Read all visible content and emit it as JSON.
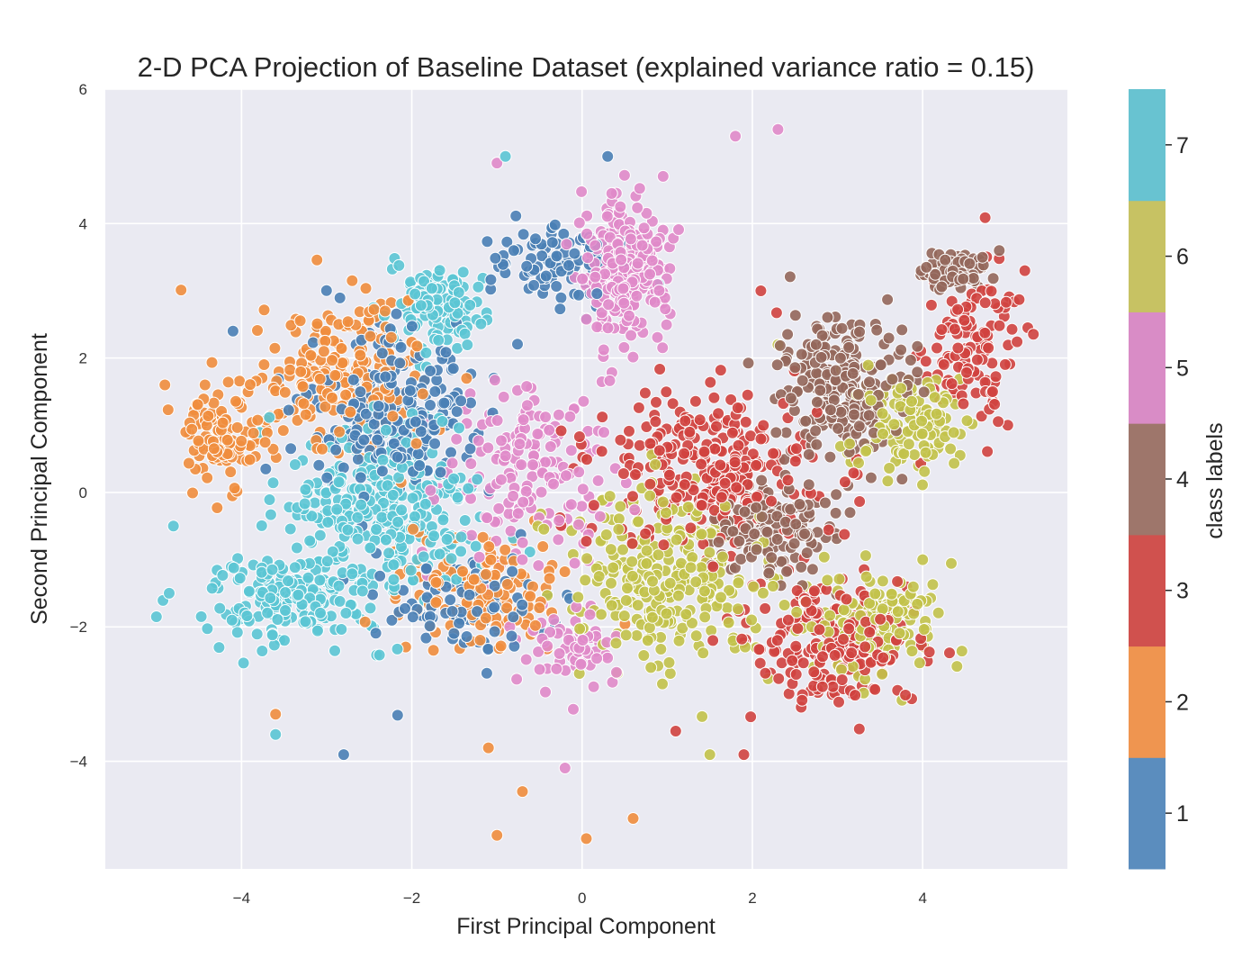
{
  "chart_data": {
    "type": "scatter",
    "title": "2-D PCA Projection of Baseline Dataset (explained variance ratio = 0.15)",
    "xlabel": "First Principal Component",
    "ylabel": "Second Principal Component",
    "xlim": [
      -5.6,
      5.7
    ],
    "ylim": [
      -5.6,
      6
    ],
    "xticks": [
      -4,
      -2,
      0,
      2,
      4
    ],
    "xtick_labels": [
      "−4",
      "−2",
      "0",
      "2",
      "4"
    ],
    "yticks": [
      -4,
      -2,
      0,
      2,
      4,
      6
    ],
    "ytick_labels": [
      "−4",
      "−2",
      "0",
      "2",
      "4",
      "6"
    ],
    "grid": true,
    "background": "#eaeaf2",
    "colorbar": {
      "label": "class labels",
      "ticks": [
        "1",
        "2",
        "3",
        "4",
        "5",
        "6",
        "7"
      ],
      "colors": [
        "#5b8dbe",
        "#ef9550",
        "#d0514e",
        "#9e766b",
        "#d98cc6",
        "#c7c263",
        "#68c3d1"
      ]
    },
    "classes": [
      {
        "label": "1",
        "color": "#4a7fb5",
        "n": 430,
        "blobs": [
          [
            -2.2,
            1.2,
            0.9,
            1.1,
            0.55
          ],
          [
            -1.4,
            -1.7,
            0.9,
            0.7,
            0.25
          ],
          [
            -0.3,
            3.4,
            0.6,
            0.6,
            0.2
          ]
        ],
        "outliers": [
          [
            -2.8,
            -3.9
          ],
          [
            0.3,
            5.0
          ],
          [
            -4.1,
            2.4
          ]
        ]
      },
      {
        "label": "2",
        "color": "#f08d3d",
        "n": 470,
        "blobs": [
          [
            -2.8,
            1.8,
            0.9,
            1.0,
            0.5
          ],
          [
            -4.3,
            0.8,
            0.35,
            0.7,
            0.2
          ],
          [
            -1.2,
            -1.5,
            1.0,
            0.8,
            0.3
          ]
        ],
        "outliers": [
          [
            -1.0,
            -5.1
          ],
          [
            0.05,
            -5.15
          ],
          [
            0.6,
            -4.85
          ],
          [
            -0.7,
            -4.45
          ],
          [
            -3.6,
            -3.3
          ],
          [
            -1.1,
            -3.8
          ],
          [
            -4.9,
            1.6
          ]
        ]
      },
      {
        "label": "3",
        "color": "#d0433f",
        "n": 640,
        "blobs": [
          [
            1.5,
            0.3,
            1.2,
            1.1,
            0.45
          ],
          [
            3.0,
            -2.2,
            0.9,
            0.8,
            0.35
          ],
          [
            4.6,
            2.2,
            0.5,
            0.9,
            0.2
          ]
        ],
        "outliers": [
          [
            5.2,
            3.3
          ],
          [
            5.0,
            1.0
          ],
          [
            2.1,
            3.0
          ],
          [
            1.9,
            -3.9
          ],
          [
            1.1,
            -3.55
          ]
        ]
      },
      {
        "label": "4",
        "color": "#93675b",
        "n": 520,
        "blobs": [
          [
            3.0,
            1.6,
            0.7,
            0.9,
            0.5
          ],
          [
            2.2,
            -0.5,
            0.6,
            0.6,
            0.3
          ],
          [
            4.4,
            3.3,
            0.3,
            0.25,
            0.2
          ]
        ],
        "outliers": [
          [
            4.9,
            3.6
          ]
        ]
      },
      {
        "label": "5",
        "color": "#e08ac9",
        "n": 520,
        "blobs": [
          [
            0.5,
            3.3,
            0.45,
            0.9,
            0.55
          ],
          [
            -0.6,
            0.3,
            0.9,
            1.2,
            0.3
          ],
          [
            -0.2,
            -2.3,
            0.6,
            0.6,
            0.15
          ]
        ],
        "outliers": [
          [
            1.8,
            5.3
          ],
          [
            2.3,
            5.4
          ],
          [
            -1.0,
            4.9
          ],
          [
            -0.2,
            -4.1
          ]
        ]
      },
      {
        "label": "6",
        "color": "#c2c24a",
        "n": 560,
        "blobs": [
          [
            1.0,
            -1.2,
            1.1,
            1.2,
            0.45
          ],
          [
            3.4,
            -1.9,
            0.7,
            0.6,
            0.3
          ],
          [
            3.8,
            1.0,
            0.6,
            0.7,
            0.25
          ]
        ],
        "outliers": [
          [
            1.5,
            -3.9
          ],
          [
            2.3,
            2.2
          ],
          [
            4.0,
            -1.0
          ]
        ]
      },
      {
        "label": "7",
        "color": "#5bc5d4",
        "n": 600,
        "blobs": [
          [
            -2.3,
            -0.3,
            1.0,
            1.2,
            0.5
          ],
          [
            -3.4,
            -1.6,
            0.9,
            0.55,
            0.3
          ],
          [
            -1.7,
            2.8,
            0.5,
            0.6,
            0.2
          ]
        ],
        "outliers": [
          [
            -5.0,
            -1.85
          ],
          [
            -4.8,
            -0.5
          ],
          [
            -3.6,
            -3.6
          ],
          [
            -0.9,
            5.0
          ],
          [
            0.9,
            3.1
          ]
        ]
      }
    ]
  }
}
